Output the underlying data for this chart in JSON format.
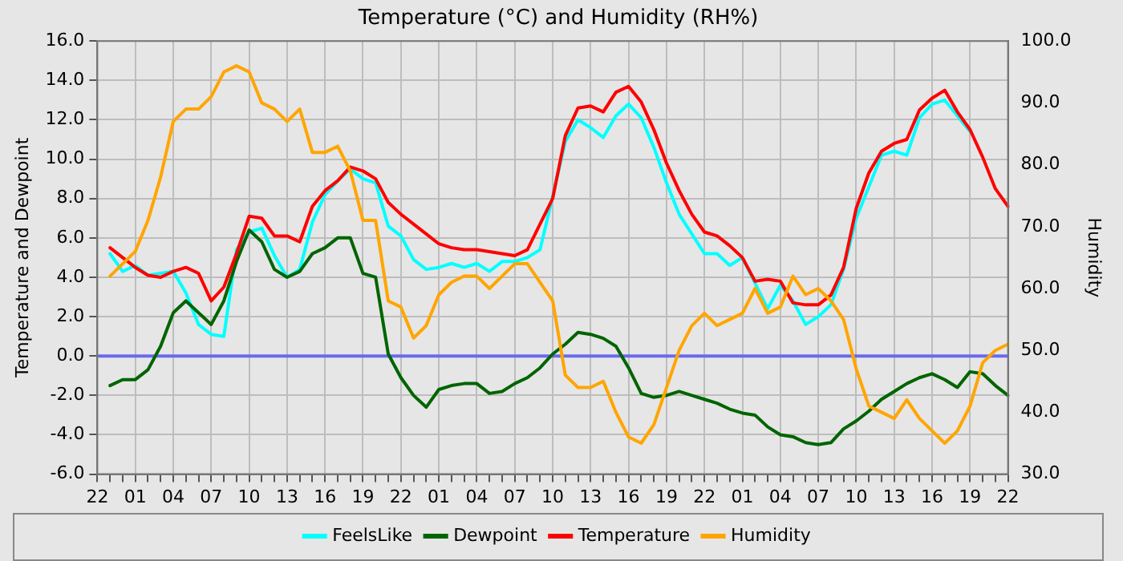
{
  "chart_data": {
    "type": "line",
    "title": "Temperature (°C) and Humidity (RH%)",
    "ylabel": "Temperature and Dewpoint",
    "y2label": "Humidity",
    "categories": [
      "22",
      null,
      null,
      "01",
      null,
      null,
      "04",
      null,
      null,
      "07",
      null,
      null,
      "10",
      null,
      null,
      "13",
      null,
      null,
      "16",
      null,
      null,
      "19",
      null,
      null,
      "22",
      null,
      null,
      "01",
      null,
      null,
      "04",
      null,
      null,
      "07",
      null,
      null,
      "10",
      null,
      null,
      "13",
      null,
      null,
      "16",
      null,
      null,
      "19",
      null,
      null,
      "22",
      null,
      null,
      "01",
      null,
      null,
      "04",
      null,
      null,
      "07",
      null,
      null,
      "10",
      null,
      null,
      "13",
      null,
      null,
      "16",
      null,
      null,
      "19",
      null,
      null,
      "22"
    ],
    "ylim": [
      -6,
      16
    ],
    "yticks": [
      {
        "value": -6,
        "label": "-6.0"
      },
      {
        "value": -4,
        "label": "-4.0"
      },
      {
        "value": -2,
        "label": "-2.0"
      },
      {
        "value": 0,
        "label": "0.0"
      },
      {
        "value": 2,
        "label": "2.0"
      },
      {
        "value": 4,
        "label": "4.0"
      },
      {
        "value": 6,
        "label": "6.0"
      },
      {
        "value": 8,
        "label": "8.0"
      },
      {
        "value": 10,
        "label": "10.0"
      },
      {
        "value": 12,
        "label": "12.0"
      },
      {
        "value": 14,
        "label": "14.0"
      },
      {
        "value": 16,
        "label": "16.0"
      }
    ],
    "y2lim": [
      30,
      100
    ],
    "y2ticks": [
      {
        "value": 30,
        "label": "30.0"
      },
      {
        "value": 40,
        "label": "40.0"
      },
      {
        "value": 50,
        "label": "50.0"
      },
      {
        "value": 60,
        "label": "60.0"
      },
      {
        "value": 70,
        "label": "70.0"
      },
      {
        "value": 80,
        "label": "80.0"
      },
      {
        "value": 90,
        "label": "90.0"
      },
      {
        "value": 100,
        "label": "100.0"
      }
    ],
    "grid": true,
    "legend": "bottom",
    "ref_lines": [
      {
        "axis": "y",
        "value": 0,
        "color": "#6a6af0"
      }
    ],
    "series": [
      {
        "name": "FeelsLike",
        "color": "#00ffff",
        "values": [
          null,
          5.2,
          4.3,
          4.6,
          4.1,
          4.2,
          4.3,
          3.2,
          1.6,
          1.1,
          1.0,
          5.4,
          6.3,
          6.5,
          5.1,
          4.0,
          4.4,
          6.8,
          8.2,
          8.9,
          9.5,
          9.0,
          8.8,
          6.6,
          6.1,
          4.9,
          4.4,
          4.5,
          4.7,
          4.5,
          4.7,
          4.3,
          4.8,
          4.8,
          5.0,
          5.4,
          8.1,
          10.9,
          12.0,
          11.6,
          11.1,
          12.2,
          12.8,
          12.1,
          10.6,
          8.8,
          7.2,
          6.2,
          5.2,
          5.2,
          4.6,
          5.0,
          3.7,
          2.4,
          3.6,
          2.8,
          1.6,
          2.0,
          2.6,
          4.4,
          7.0,
          8.6,
          10.2,
          10.4,
          10.2,
          12.1,
          12.8,
          13.0,
          12.2,
          11.4,
          null,
          null,
          null
        ]
      },
      {
        "name": "Dewpoint",
        "color": "#006400",
        "values": [
          null,
          -1.5,
          -1.2,
          -1.2,
          -0.7,
          0.5,
          2.2,
          2.8,
          2.2,
          1.6,
          2.8,
          4.8,
          6.4,
          5.8,
          4.4,
          4.0,
          4.3,
          5.2,
          5.5,
          6.0,
          6.0,
          4.2,
          4.0,
          0.1,
          -1.1,
          -2.0,
          -2.6,
          -1.7,
          -1.5,
          -1.4,
          -1.4,
          -1.9,
          -1.8,
          -1.4,
          -1.1,
          -0.6,
          0.1,
          0.6,
          1.2,
          1.1,
          0.9,
          0.5,
          -0.6,
          -1.9,
          -2.1,
          -2.0,
          -1.8,
          -2.0,
          -2.2,
          -2.4,
          -2.7,
          -2.9,
          -3.0,
          -3.6,
          -4.0,
          -4.1,
          -4.4,
          -4.5,
          -4.4,
          -3.7,
          -3.3,
          -2.8,
          -2.2,
          -1.8,
          -1.4,
          -1.1,
          -0.9,
          -1.2,
          -1.6,
          -0.8,
          -0.9,
          -1.5,
          -2.0
        ]
      },
      {
        "name": "Temperature",
        "color": "#ff0000",
        "values": [
          null,
          5.5,
          5.0,
          4.5,
          4.1,
          4.0,
          4.3,
          4.5,
          4.2,
          2.8,
          3.5,
          5.2,
          7.1,
          7.0,
          6.1,
          6.1,
          5.8,
          7.6,
          8.4,
          8.9,
          9.6,
          9.4,
          9.0,
          7.8,
          7.2,
          6.7,
          6.2,
          5.7,
          5.5,
          5.4,
          5.4,
          5.3,
          5.2,
          5.1,
          5.4,
          6.7,
          8.0,
          11.2,
          12.6,
          12.7,
          12.4,
          13.4,
          13.7,
          12.9,
          11.5,
          9.8,
          8.4,
          7.2,
          6.3,
          6.1,
          5.6,
          5.0,
          3.8,
          3.9,
          3.8,
          2.7,
          2.6,
          2.6,
          3.1,
          4.5,
          7.5,
          9.3,
          10.4,
          10.8,
          11.0,
          12.5,
          13.1,
          13.5,
          12.4,
          11.5,
          10.1,
          8.5,
          7.6
        ]
      },
      {
        "name": "Humidity",
        "color": "#ffa500",
        "axis": "y2",
        "values": [
          null,
          62,
          64,
          66,
          71,
          78,
          87,
          89,
          89,
          91,
          95,
          96,
          95,
          90,
          89,
          87,
          89,
          82,
          82,
          83,
          79,
          71,
          71,
          58,
          57,
          52,
          54,
          59,
          61,
          62,
          62,
          60,
          62,
          64,
          64,
          61,
          58,
          46,
          44,
          44,
          45,
          40,
          36,
          35,
          38,
          44,
          50,
          54,
          56,
          54,
          55,
          56,
          60,
          56,
          57,
          62,
          59,
          60,
          58,
          55,
          47,
          41,
          40,
          39,
          42,
          39,
          37,
          35,
          37,
          41,
          48,
          50,
          51
        ]
      }
    ]
  }
}
